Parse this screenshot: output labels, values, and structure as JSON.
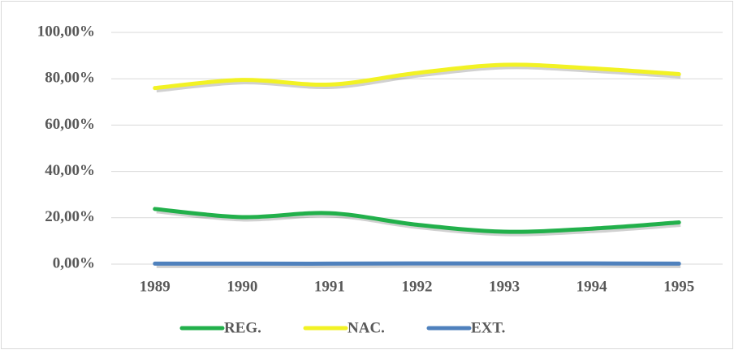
{
  "chart_data": {
    "type": "line",
    "categories": [
      "1989",
      "1990",
      "1991",
      "1992",
      "1993",
      "1994",
      "1995"
    ],
    "series": [
      {
        "name": "REG.",
        "color": "#22b04b",
        "values": [
          23.8,
          20.3,
          22.0,
          17.0,
          14.0,
          15.3,
          18.0
        ]
      },
      {
        "name": "NAC.",
        "color": "#f2f224",
        "values": [
          76.0,
          79.5,
          77.5,
          82.5,
          86.0,
          84.5,
          82.0
        ]
      },
      {
        "name": "EXT.",
        "color": "#4f81bd",
        "values": [
          0.2,
          0.2,
          0.2,
          0.3,
          0.3,
          0.3,
          0.2
        ]
      }
    ],
    "ylim": [
      0,
      100
    ],
    "yticks": [
      {
        "value": 0,
        "label": "0,00%"
      },
      {
        "value": 20,
        "label": "20,00%"
      },
      {
        "value": 40,
        "label": "40,00%"
      },
      {
        "value": 60,
        "label": "60,00%"
      },
      {
        "value": 80,
        "label": "80,00%"
      },
      {
        "value": 100,
        "label": "100,00%"
      }
    ],
    "grid": true,
    "legend": "bottom"
  }
}
